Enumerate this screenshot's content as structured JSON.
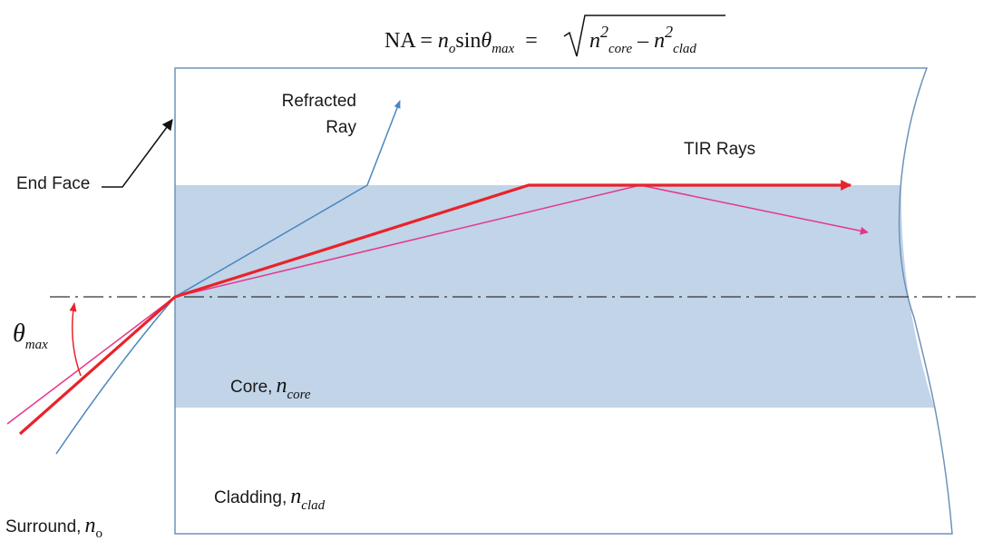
{
  "equation": {
    "lhs": "NA =",
    "n": "n",
    "n_sub": "o",
    "sin": "sin",
    "theta": "θ",
    "theta_sub": "max",
    "eq": "=",
    "n2a": "n",
    "sup2a": "2",
    "core_sub": "core",
    "minus": "–",
    "n2b": "n",
    "sup2b": "2",
    "clad_sub": "clad"
  },
  "labels": {
    "refracted_line1": "Refracted",
    "refracted_line2": "Ray",
    "tir_rays": "TIR Rays",
    "end_face": "End Face",
    "theta": "θ",
    "theta_sub": "max",
    "core": "Core,",
    "core_n": "n",
    "core_sub": "core",
    "cladding": "Cladding,",
    "cladding_n": "n",
    "cladding_sub": "clad",
    "surround": "Surround,",
    "surround_n": "n",
    "surround_sub": "o"
  },
  "colors": {
    "core_fill": "#c1d4e8",
    "fiber_outline": "#6f93b8",
    "refracted_ray": "#4a86c0",
    "tir_ray": "#e8232a",
    "pink_ray": "#e5368e",
    "axis": "#333333",
    "angle_arrow": "#e8232a"
  }
}
